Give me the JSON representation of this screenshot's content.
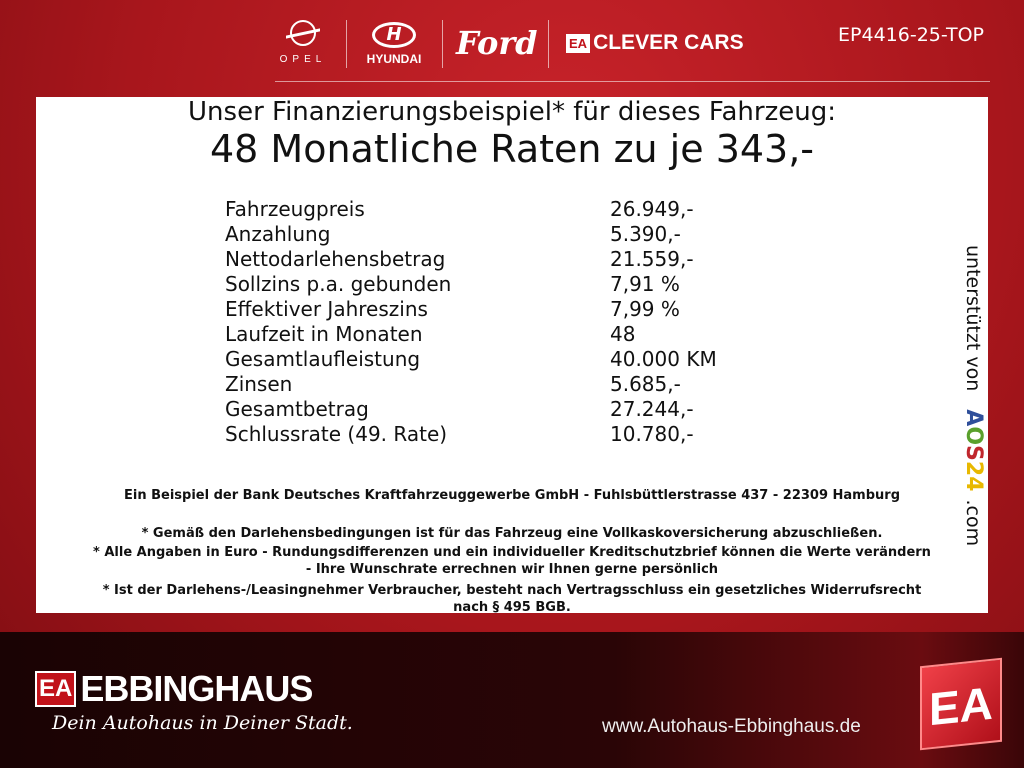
{
  "header": {
    "brands": [
      "OPEL",
      "HYUNDAI",
      "Ford",
      "CLEVER CARS"
    ],
    "clever_logo_mark": "EA",
    "code": "EP4416-25-TOP"
  },
  "offer": {
    "title": "Unser Finanzierungsbeispiel* für dieses Fahrzeug:",
    "headline": "48 Monatliche Raten zu je 343,-",
    "rows": [
      {
        "label": "Fahrzeugpreis",
        "value": "26.949,-"
      },
      {
        "label": "Anzahlung",
        "value": "5.390,-"
      },
      {
        "label": "Nettodarlehensbetrag",
        "value": "21.559,-"
      },
      {
        "label": "Sollzins p.a. gebunden",
        "value": "7,91 %"
      },
      {
        "label": "Effektiver Jahreszins",
        "value": "7,99 %"
      },
      {
        "label": "Laufzeit in Monaten",
        "value": "48"
      },
      {
        "label": "Gesamtlaufleistung",
        "value": "40.000 KM"
      },
      {
        "label": "Zinsen",
        "value": "5.685,-"
      },
      {
        "label": "Gesamtbetrag",
        "value": "27.244,-"
      },
      {
        "label": "Schlussrate (49. Rate)",
        "value": "10.780,-"
      }
    ],
    "bank": "Ein Beispiel der Bank Deutsches Kraftfahrzeuggewerbe GmbH - Fuhlsbüttlerstrasse 437 - 22309 Hamburg",
    "notes": [
      "* Gemäß den Darlehensbedingungen ist für das Fahrzeug eine Vollkaskoversicherung abzuschließen.",
      "* Alle Angaben in Euro - Rundungsdifferenzen und ein individueller Kreditschutzbrief können die Werte verändern",
      "- Ihre Wunschrate errechnen wir Ihnen gerne persönlich",
      "* Ist der Darlehens-/Leasingnehmer Verbraucher, besteht nach Vertragsschluss ein gesetzliches Widerrufsrecht",
      "nach § 495 BGB."
    ],
    "support": {
      "prefix": "unterstützt von",
      "brand_letters": [
        "A",
        "O",
        "S",
        "2",
        "4"
      ],
      "brand_colors": [
        "#2f4f9a",
        "#5aa02c",
        "#c0272d",
        "#e8b800",
        "#e8b800"
      ],
      "suffix": ".com"
    }
  },
  "footer": {
    "logo_mark": "EA",
    "name": "EBBINGHAUS",
    "slogan": "Dein Autohaus in Deiner Stadt.",
    "url": "www.Autohaus-Ebbinghaus.de"
  }
}
